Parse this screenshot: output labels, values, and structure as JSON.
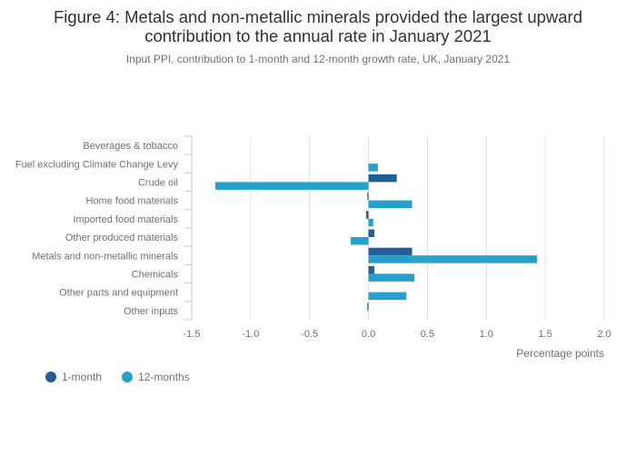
{
  "header": {
    "title_line1": "Figure 4: Metals and non-metallic minerals provided the largest upward",
    "title_line2": "contribution to the annual rate in January 2021",
    "subtitle": "Input PPI, contribution to 1-month and 12-month growth rate, UK, January 2021"
  },
  "colors": {
    "one_month": "#206095",
    "twelve_months": "#27a0cc",
    "grid": "#e0e0e0",
    "axis": "#c8c8c8",
    "text": "#414042"
  },
  "chart_data": {
    "type": "bar",
    "orientation": "horizontal",
    "categories": [
      "Beverages & tobacco",
      "Fuel excluding Climate Change Levy",
      "Crude oil",
      "Home food materials",
      "Imported food materials",
      "Other produced materials",
      "Metals and non-metallic minerals",
      "Chemicals",
      "Other parts and equipment",
      "Other inputs"
    ],
    "series": [
      {
        "name": "1-month",
        "values": [
          0.0,
          0.0,
          0.24,
          -0.01,
          -0.02,
          0.05,
          0.37,
          0.05,
          0.0,
          -0.01
        ]
      },
      {
        "name": "12-months",
        "values": [
          0.0,
          0.08,
          -1.3,
          0.37,
          0.04,
          -0.15,
          1.43,
          0.39,
          0.32,
          0.0
        ]
      }
    ],
    "xlim": [
      -1.5,
      2.0
    ],
    "xticks": [
      -1.5,
      -1.0,
      -0.5,
      0.0,
      0.5,
      1.0,
      1.5,
      2.0
    ],
    "xtick_labels": [
      "-1.5",
      "-1.0",
      "-0.5",
      "0.0",
      "0.5",
      "1.0",
      "1.5",
      "2.0"
    ],
    "xlabel": "Percentage points",
    "ylabel": "",
    "grid": true,
    "legend_position": "bottom-left"
  },
  "legend": {
    "items": [
      "1-month",
      "12-months"
    ]
  }
}
